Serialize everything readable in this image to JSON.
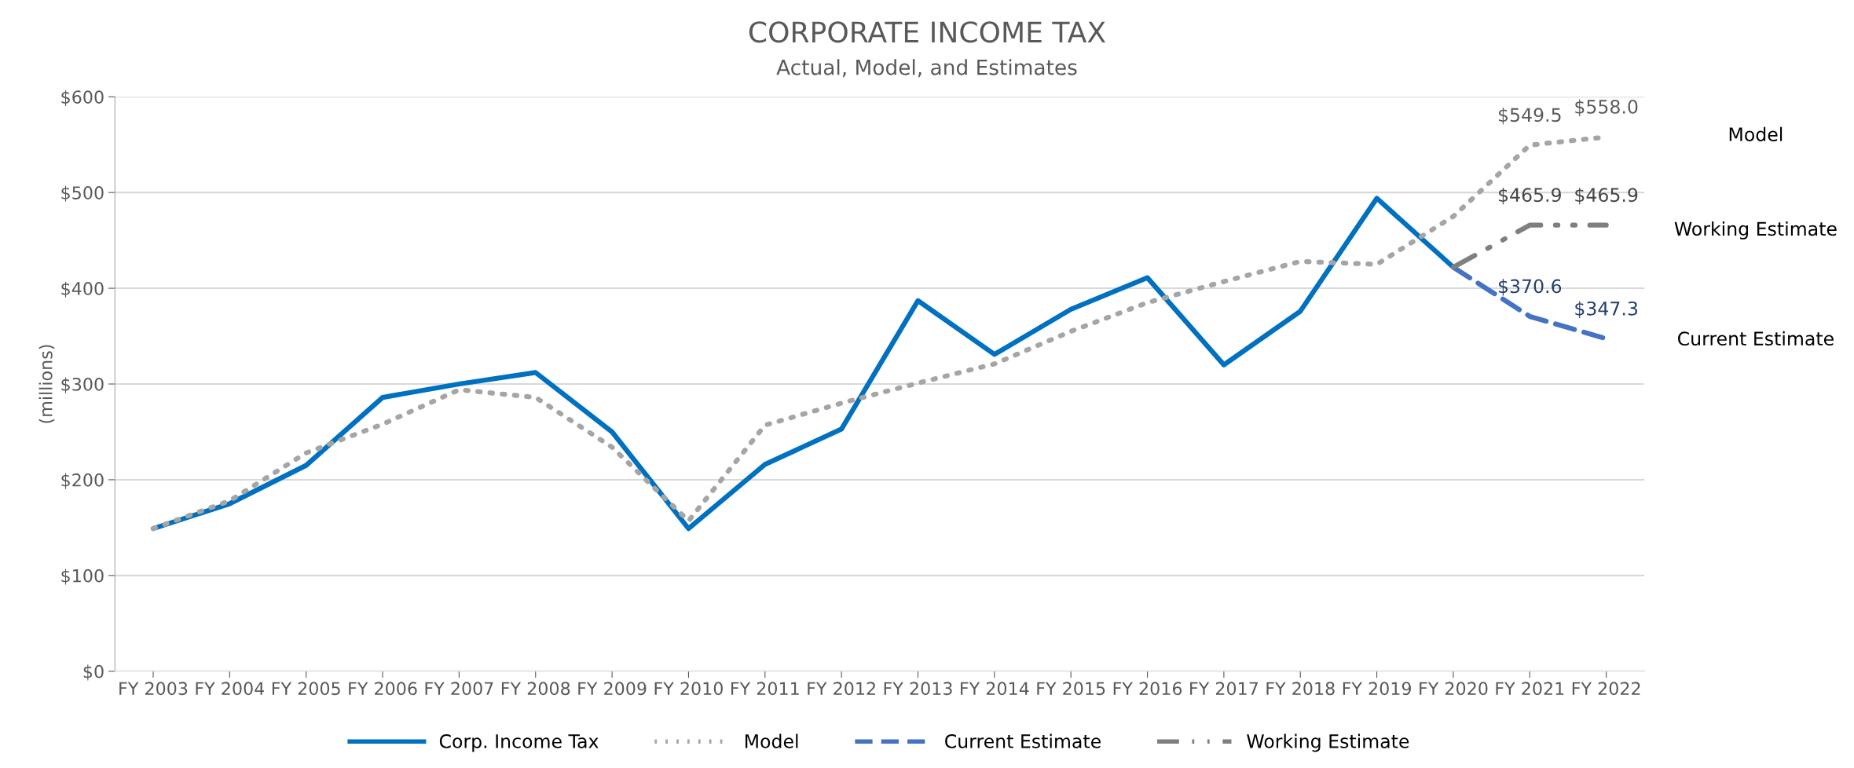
{
  "chart_data": {
    "type": "line",
    "title": "CORPORATE INCOME TAX",
    "subtitle": "Actual, Model, and Estimates",
    "ylabel": "(millions)",
    "categories": [
      "FY 2003",
      "FY 2004",
      "FY 2005",
      "FY 2006",
      "FY 2007",
      "FY 2008",
      "FY 2009",
      "FY 2010",
      "FY 2011",
      "FY 2012",
      "FY 2013",
      "FY 2014",
      "FY 2015",
      "FY 2016",
      "FY 2017",
      "FY 2018",
      "FY 2019",
      "FY 2020",
      "FY 2021",
      "FY 2022"
    ],
    "series": [
      {
        "name": "Corp. Income Tax",
        "color": "#0070c0",
        "line_style": "solid",
        "values": [
          149,
          175,
          215,
          286,
          300,
          312,
          250,
          149,
          216,
          253,
          387,
          331,
          378,
          411,
          320,
          376,
          494,
          422,
          null,
          null
        ]
      },
      {
        "name": "Model",
        "color": "#a5a5a5",
        "line_style": "dotted",
        "values": [
          149,
          178,
          228,
          258,
          294,
          286,
          234,
          157,
          257,
          280,
          301,
          321,
          355,
          385,
          407,
          428,
          425,
          475,
          549.5,
          558.0
        ],
        "value_labels": [
          null,
          null,
          null,
          null,
          null,
          null,
          null,
          null,
          null,
          null,
          null,
          null,
          null,
          null,
          null,
          null,
          null,
          null,
          "$549.5",
          "$558.0"
        ]
      },
      {
        "name": "Current Estimate",
        "color": "#4472c4",
        "line_style": "dashed",
        "values": [
          null,
          null,
          null,
          null,
          null,
          null,
          null,
          null,
          null,
          null,
          null,
          null,
          null,
          null,
          null,
          null,
          null,
          422,
          370.6,
          347.3
        ],
        "value_labels": [
          null,
          null,
          null,
          null,
          null,
          null,
          null,
          null,
          null,
          null,
          null,
          null,
          null,
          null,
          null,
          null,
          null,
          null,
          "$370.6",
          "$347.3"
        ]
      },
      {
        "name": "Working Estimate",
        "color": "#7f7f7f",
        "line_style": "dashdot",
        "values": [
          null,
          null,
          null,
          null,
          null,
          null,
          null,
          null,
          null,
          null,
          null,
          null,
          null,
          null,
          null,
          null,
          null,
          422,
          465.9,
          465.9
        ],
        "value_labels": [
          null,
          null,
          null,
          null,
          null,
          null,
          null,
          null,
          null,
          null,
          null,
          null,
          null,
          null,
          null,
          null,
          null,
          null,
          "$465.9",
          "$465.9"
        ]
      }
    ],
    "ylim": [
      0,
      600
    ],
    "yticks": [
      {
        "value": 0,
        "label": "$0"
      },
      {
        "value": 100,
        "label": "$100"
      },
      {
        "value": 200,
        "label": "$200"
      },
      {
        "value": 300,
        "label": "$300"
      },
      {
        "value": 400,
        "label": "$400"
      },
      {
        "value": 500,
        "label": "$500"
      },
      {
        "value": 600,
        "label": "$600"
      }
    ],
    "grid": "y",
    "legend": "bottom",
    "marker": "none",
    "annotations": [
      "Model",
      "Working Estimate",
      "Current Estimate"
    ]
  }
}
